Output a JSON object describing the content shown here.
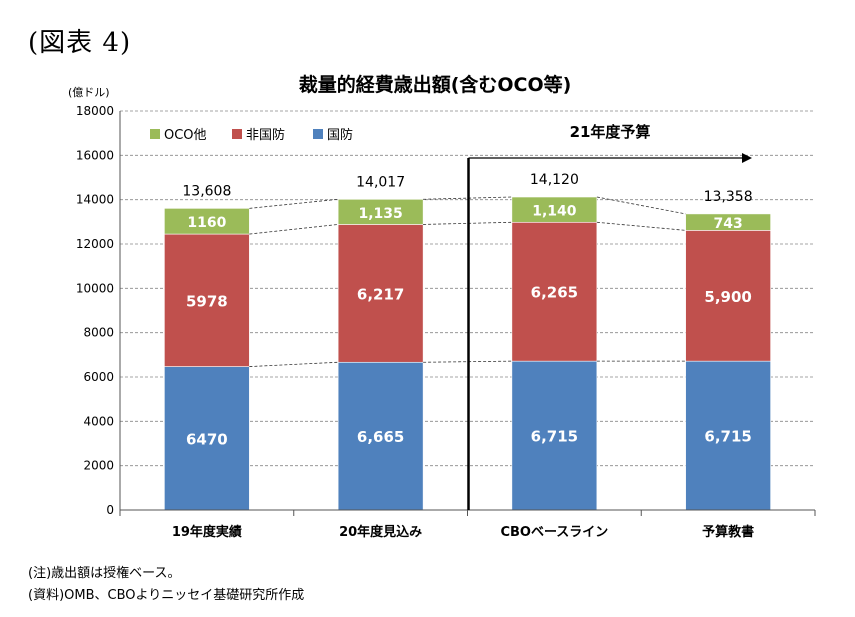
{
  "figure_label": "(図表 4)",
  "notes": {
    "note1": "(注)歳出額は授権ベース。",
    "note2": "(資料)OMB、CBOよりニッセイ基礎研究所作成"
  },
  "chart_data": {
    "type": "bar",
    "stacked": true,
    "title": "裁量的経費歳出額(含むOCO等)",
    "unit_label": "(億ドル)",
    "ylim": [
      0,
      18000
    ],
    "yticks": [
      "0",
      "2000",
      "4000",
      "6000",
      "8000",
      "10000",
      "12000",
      "14000",
      "16000",
      "18000"
    ],
    "grid": true,
    "legend_position": "top-left",
    "categories": [
      "19年度実績",
      "20年度見込み",
      "CBOベースライン",
      "予算教書"
    ],
    "series": [
      {
        "name": "国防",
        "color": "#4f81bd",
        "values": [
          6470,
          6665,
          6715,
          6715
        ],
        "labels": [
          "6470",
          "6,665",
          "6,715",
          "6,715"
        ]
      },
      {
        "name": "非国防",
        "color": "#c0504d",
        "values": [
          5978,
          6217,
          6265,
          5900
        ],
        "labels": [
          "5978",
          "6,217",
          "6,265",
          "5,900"
        ]
      },
      {
        "name": "OCO他",
        "color": "#9bbb59",
        "values": [
          1160,
          1135,
          1140,
          743
        ],
        "labels": [
          "1160",
          "1,135",
          "1,140",
          "743"
        ]
      }
    ],
    "totals": [
      "13,608",
      "14,017",
      "14,120",
      "13,358"
    ],
    "annotation": "21年度予算"
  }
}
